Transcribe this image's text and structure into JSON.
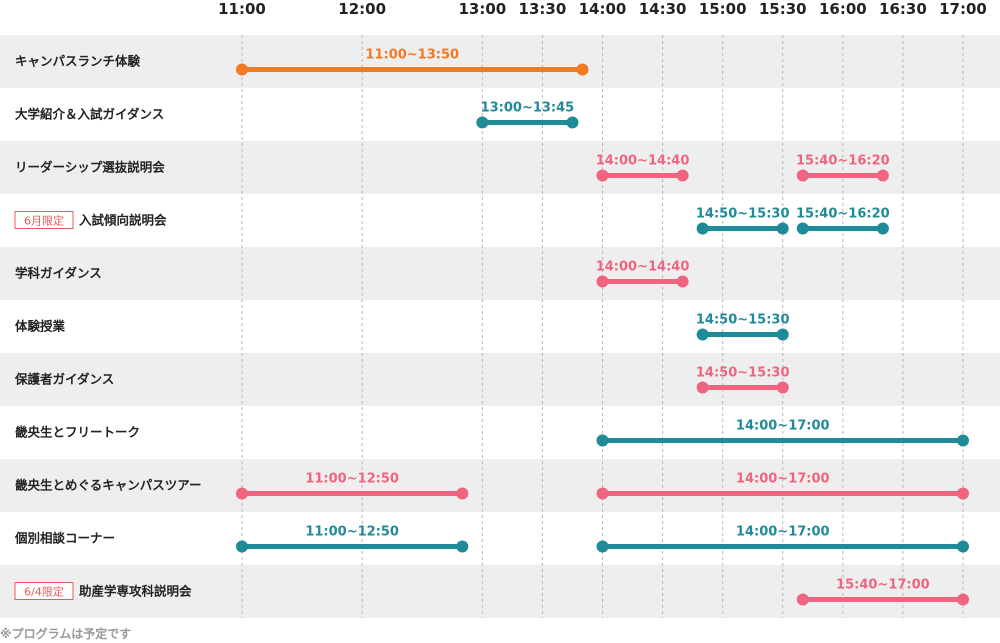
{
  "chart_data": {
    "type": "timeline",
    "time_ticks": [
      "11:00",
      "12:00",
      "13:00",
      "13:30",
      "14:00",
      "14:30",
      "15:00",
      "15:30",
      "16:00",
      "16:30",
      "17:00"
    ],
    "colors": {
      "orange": "#f07a24",
      "teal": "#1f8a98",
      "pink": "#f06480",
      "row_shade": "#eeeeee",
      "grid": "#b8b8b8",
      "tag": "#e85a5a"
    },
    "rows": [
      {
        "label": "キャンパスランチ体験",
        "tag": "",
        "bars": [
          {
            "start": "11:00",
            "end": "13:50",
            "label": "11:00~13:50",
            "color": "orange"
          }
        ]
      },
      {
        "label": "大学紹介＆入試ガイダンス",
        "tag": "",
        "bars": [
          {
            "start": "13:00",
            "end": "13:45",
            "label": "13:00~13:45",
            "color": "teal"
          }
        ]
      },
      {
        "label": "リーダーシップ選抜説明会",
        "tag": "",
        "bars": [
          {
            "start": "14:00",
            "end": "14:40",
            "label": "14:00~14:40",
            "color": "pink"
          },
          {
            "start": "15:40",
            "end": "16:20",
            "label": "15:40~16:20",
            "color": "pink"
          }
        ]
      },
      {
        "label": "入試傾向説明会",
        "tag": "6月限定",
        "bars": [
          {
            "start": "14:50",
            "end": "15:30",
            "label": "14:50~15:30",
            "color": "teal"
          },
          {
            "start": "15:40",
            "end": "16:20",
            "label": "15:40~16:20",
            "color": "teal"
          }
        ]
      },
      {
        "label": "学科ガイダンス",
        "tag": "",
        "bars": [
          {
            "start": "14:00",
            "end": "14:40",
            "label": "14:00~14:40",
            "color": "pink"
          }
        ]
      },
      {
        "label": "体験授業",
        "tag": "",
        "bars": [
          {
            "start": "14:50",
            "end": "15:30",
            "label": "14:50~15:30",
            "color": "teal"
          }
        ]
      },
      {
        "label": "保護者ガイダンス",
        "tag": "",
        "bars": [
          {
            "start": "14:50",
            "end": "15:30",
            "label": "14:50~15:30",
            "color": "pink"
          }
        ]
      },
      {
        "label": "畿央生とフリートーク",
        "tag": "",
        "bars": [
          {
            "start": "14:00",
            "end": "17:00",
            "label": "14:00~17:00",
            "color": "teal"
          }
        ]
      },
      {
        "label": "畿央生とめぐるキャンパスツアー",
        "tag": "",
        "bars": [
          {
            "start": "11:00",
            "end": "12:50",
            "label": "11:00~12:50",
            "color": "pink"
          },
          {
            "start": "14:00",
            "end": "17:00",
            "label": "14:00~17:00",
            "color": "pink"
          }
        ]
      },
      {
        "label": "個別相談コーナー",
        "tag": "",
        "bars": [
          {
            "start": "11:00",
            "end": "12:50",
            "label": "11:00~12:50",
            "color": "teal"
          },
          {
            "start": "14:00",
            "end": "17:00",
            "label": "14:00~17:00",
            "color": "teal"
          }
        ]
      },
      {
        "label": "助産学専攻科説明会",
        "tag": "6/4限定",
        "bars": [
          {
            "start": "15:40",
            "end": "17:00",
            "label": "15:40~17:00",
            "color": "pink"
          }
        ]
      }
    ]
  },
  "footnote": "※プログラムは予定です"
}
